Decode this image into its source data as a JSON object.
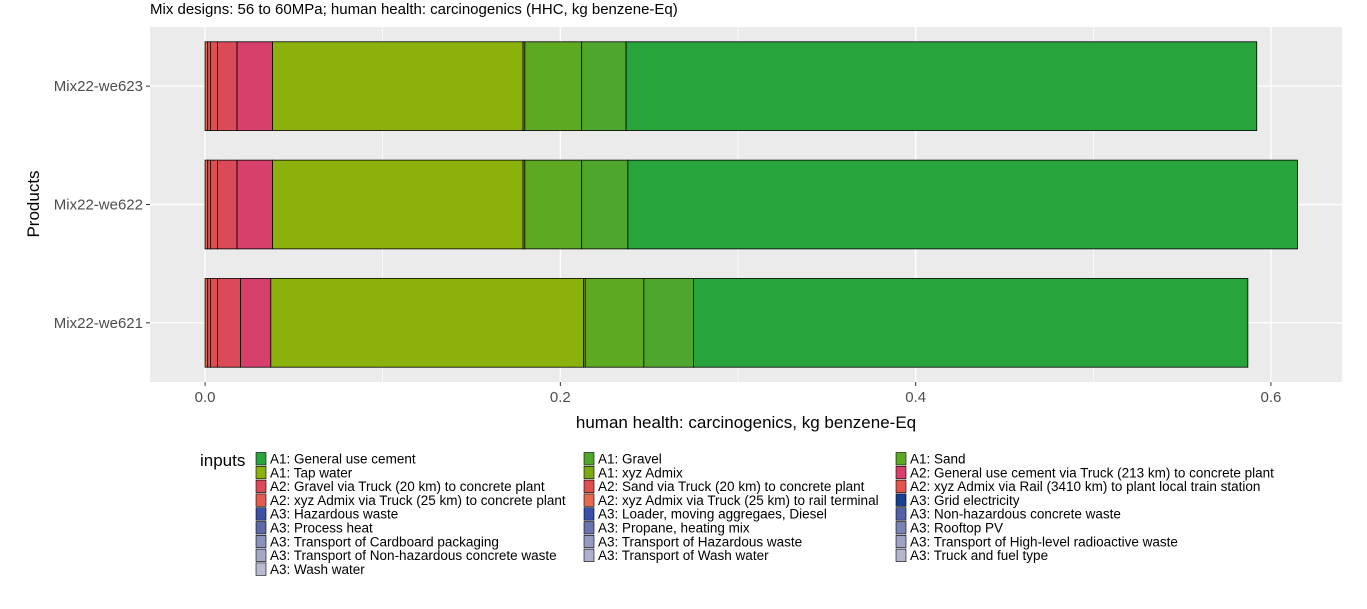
{
  "chart_data": {
    "type": "bar",
    "orientation": "horizontal",
    "stacked": true,
    "title": "Mix designs: 56 to 60MPa; human health: carcinogenics (HHC, kg benzene-Eq)",
    "xlabel": "human health: carcinogenics, kg benzene-Eq",
    "ylabel": "Products",
    "xlim": [
      -0.031,
      0.64
    ],
    "xticks": [
      0.0,
      0.2,
      0.4,
      0.6
    ],
    "xtick_labels": [
      "0.0",
      "0.2",
      "0.4",
      "0.6"
    ],
    "grid": true,
    "legend_position": "bottom",
    "legend_title": "inputs",
    "categories": [
      "Mix22-we621",
      "Mix22-we622",
      "Mix22-we623"
    ],
    "series": [
      {
        "name": "A2: xyz Admix via Truck (25 km) to rail terminal",
        "color": "#e66a4f",
        "values": [
          0.0015,
          0.0015,
          0.0015
        ]
      },
      {
        "name": "A2: xyz Admix via Truck (25 km) to concrete plant",
        "color": "#e35b4f",
        "values": [
          0.0015,
          0.0015,
          0.0015
        ]
      },
      {
        "name": "A2: Sand via Truck (20 km) to concrete plant",
        "color": "#df4f52",
        "values": [
          0.004,
          0.004,
          0.004
        ]
      },
      {
        "name": "A2: Gravel via Truck (20 km) to concrete plant",
        "color": "#da4a58",
        "values": [
          0.013,
          0.011,
          0.011
        ]
      },
      {
        "name": "A2: General use cement via Truck (213 km) to concrete plant",
        "color": "#d6406b",
        "values": [
          0.017,
          0.02,
          0.02
        ]
      },
      {
        "name": "A1: Tap water",
        "color": "#8bb20c",
        "values": [
          0.176,
          0.141,
          0.141
        ]
      },
      {
        "name": "A1: xyz Admix",
        "color": "#79aa14",
        "values": [
          0.001,
          0.001,
          0.001
        ]
      },
      {
        "name": "A1: Sand",
        "color": "#5da921",
        "values": [
          0.033,
          0.032,
          0.032
        ]
      },
      {
        "name": "A1: Gravel",
        "color": "#4ea72c",
        "values": [
          0.028,
          0.026,
          0.025
        ]
      },
      {
        "name": "A1: General use cement",
        "color": "#28a43d",
        "values": [
          0.312,
          0.377,
          0.355
        ]
      }
    ]
  },
  "legend": {
    "title": "inputs",
    "columns": [
      [
        {
          "label": "A1: General use cement",
          "color": "#28a43d"
        },
        {
          "label": "A1: Tap water",
          "color": "#8bb20c"
        },
        {
          "label": "A2: Gravel via Truck (20 km) to concrete plant",
          "color": "#da4a58"
        },
        {
          "label": "A2: xyz Admix via Truck (25 km) to concrete plant",
          "color": "#e35b4f"
        },
        {
          "label": "A3: Hazardous waste",
          "color": "#3f51a3"
        },
        {
          "label": "A3: Process heat",
          "color": "#5e6aa8"
        },
        {
          "label": "A3: Transport of Cardboard packaging",
          "color": "#8b91b8"
        },
        {
          "label": "A3: Transport of Non-hazardous concrete waste",
          "color": "#a5a9c5"
        },
        {
          "label": "A3: Wash water",
          "color": "#b8bbd0"
        }
      ],
      [
        {
          "label": "A1: Gravel",
          "color": "#4ea72c"
        },
        {
          "label": "A1: xyz Admix",
          "color": "#79aa14"
        },
        {
          "label": "A2: Sand via Truck (20 km) to concrete plant",
          "color": "#df4f52"
        },
        {
          "label": "A2: xyz Admix via Truck (25 km) to rail terminal",
          "color": "#e66a4f"
        },
        {
          "label": "A3: Loader, moving aggregaes, Diesel",
          "color": "#3b4fa8"
        },
        {
          "label": "A3: Propane, heating mix",
          "color": "#6a74ad"
        },
        {
          "label": "A3: Transport of Hazardous waste",
          "color": "#959ac0"
        },
        {
          "label": "A3: Transport of Wash water",
          "color": "#adb0ca"
        }
      ],
      [
        {
          "label": "A1: Sand",
          "color": "#5da921"
        },
        {
          "label": "A2: General use cement via Truck (213 km) to concrete plant",
          "color": "#d6406b"
        },
        {
          "label": "A2: xyz Admix via Rail (3410 km) to plant local train station",
          "color": "#e15450"
        },
        {
          "label": "A3: Grid electricity",
          "color": "#1a3f8f"
        },
        {
          "label": "A3: Non-hazardous concrete waste",
          "color": "#5361a6"
        },
        {
          "label": "A3: Rooftop PV",
          "color": "#7c83b3"
        },
        {
          "label": "A3: Transport of High-level radioactive waste",
          "color": "#9ea2c3"
        },
        {
          "label": "A3: Truck and fuel type",
          "color": "#b3b6cd"
        }
      ]
    ]
  }
}
